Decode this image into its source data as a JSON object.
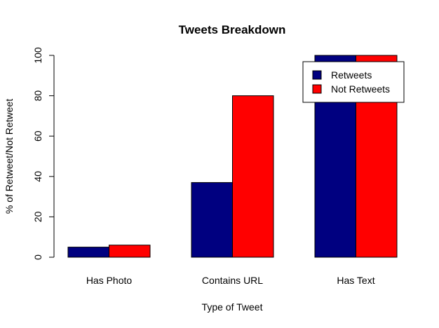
{
  "chart_data": {
    "type": "bar",
    "title": "Tweets Breakdown",
    "xlabel": "Type of Tweet",
    "ylabel": "% of Retweet/Not Retweet",
    "categories": [
      "Has Photo",
      "Contains URL",
      "Has Text"
    ],
    "series": [
      {
        "name": "Retweets",
        "color": "#000080",
        "values": [
          5,
          37,
          100
        ]
      },
      {
        "name": "Not Retweets",
        "color": "#ff0000",
        "values": [
          6,
          80,
          100
        ]
      }
    ],
    "ylim": [
      0,
      100
    ],
    "yticks": [
      0,
      20,
      40,
      60,
      80,
      100
    ],
    "grid": false,
    "legend_position": "top-right"
  }
}
